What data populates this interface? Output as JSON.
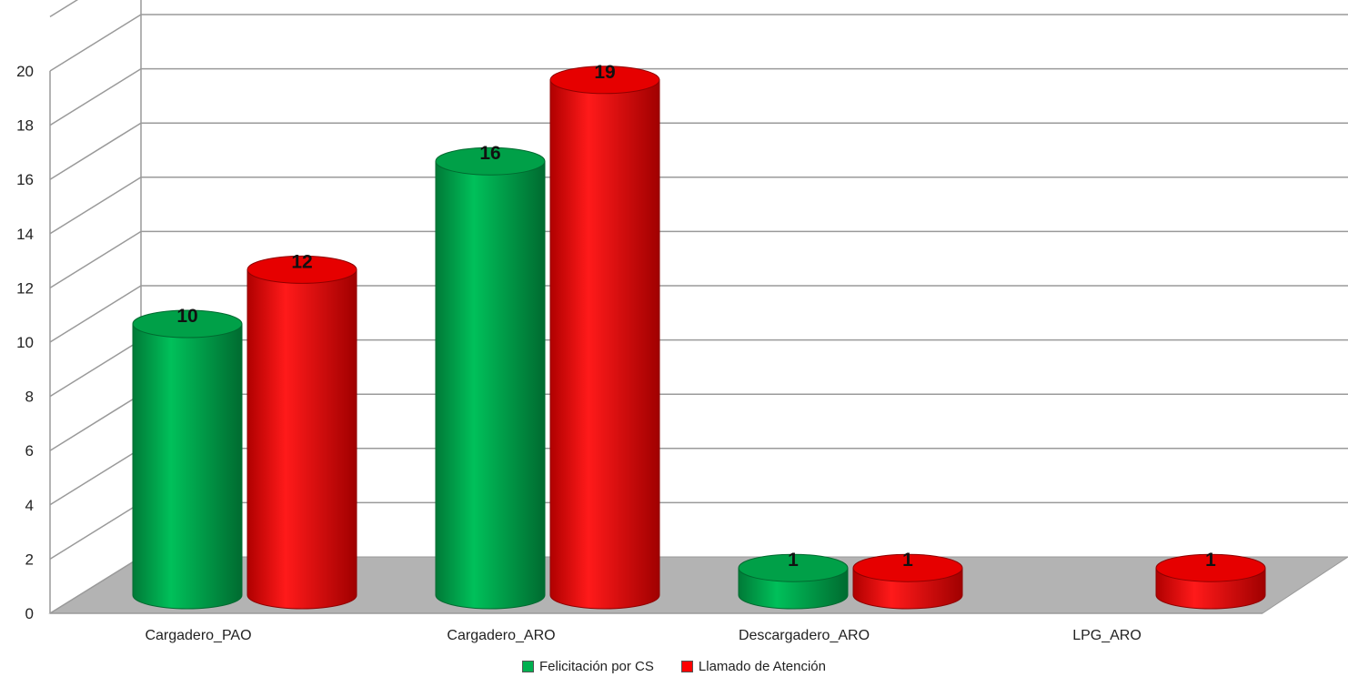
{
  "chart_data": {
    "type": "bar",
    "style": "3d-cylinder",
    "categories": [
      "Cargadero_PAO",
      "Cargadero_ARO",
      "Descargadero_ARO",
      "LPG_ARO"
    ],
    "series": [
      {
        "name": "Felicitación por CS",
        "color": "#00b050",
        "values": [
          10,
          16,
          1,
          null
        ]
      },
      {
        "name": "Llamado de Atención",
        "color": "#ff0000",
        "values": [
          12,
          19,
          1,
          1
        ]
      }
    ],
    "data_labels": [
      [
        "10",
        "16",
        "1",
        ""
      ],
      [
        "12",
        "19",
        "1",
        "1"
      ]
    ],
    "y_ticks": [
      "0",
      "2",
      "4",
      "6",
      "8",
      "10",
      "12",
      "14",
      "16",
      "18",
      "20"
    ],
    "ylim": [
      0,
      22
    ],
    "grid": true,
    "legend_position": "bottom",
    "floor_color": "#b3b3b3"
  }
}
